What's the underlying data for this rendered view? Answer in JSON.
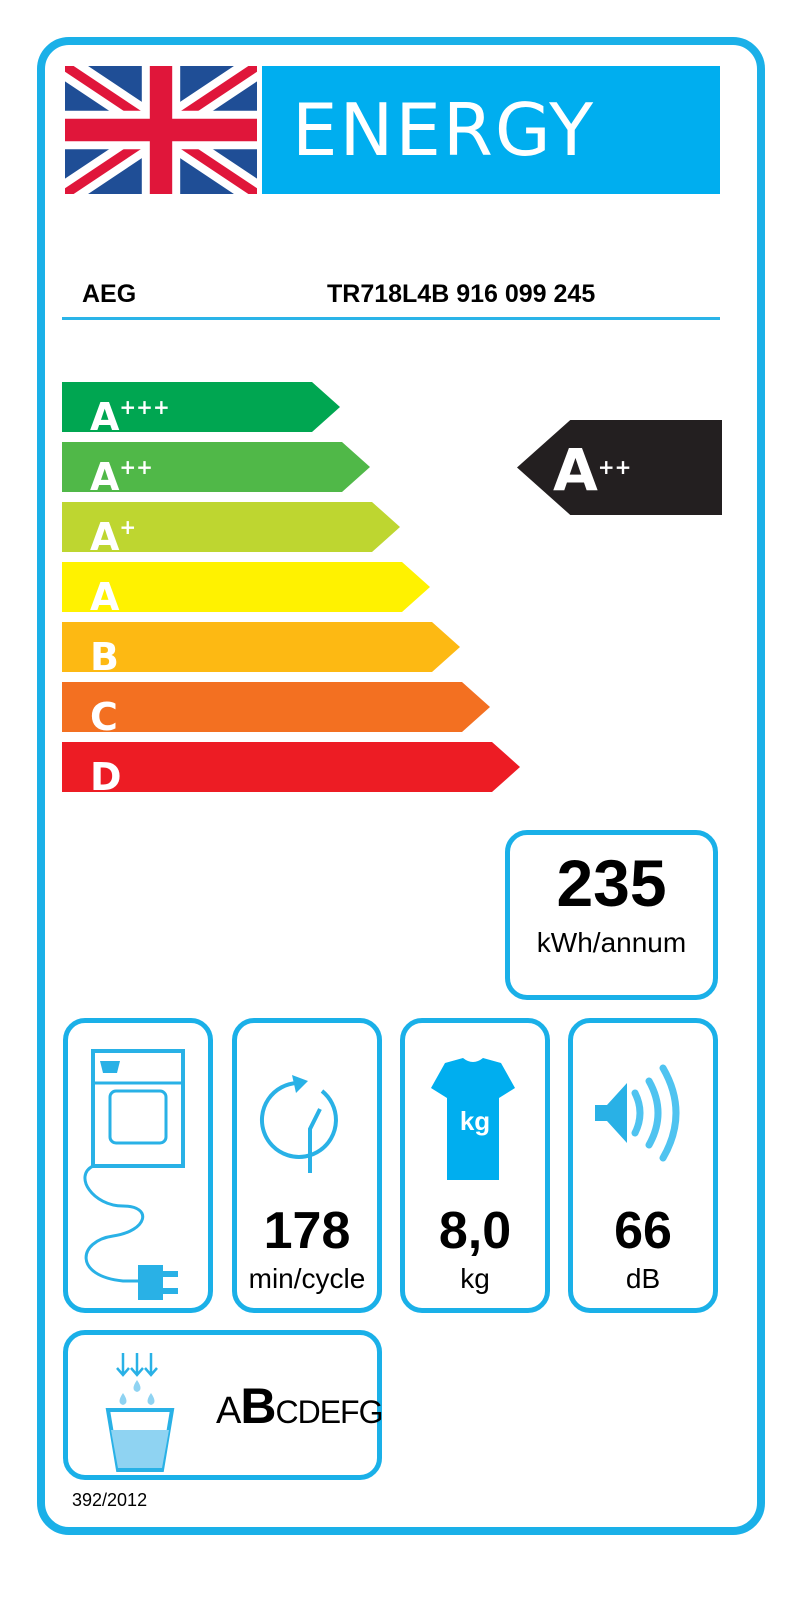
{
  "header": {
    "title": "ENERGY",
    "flag": "uk-flag"
  },
  "supplier": "AEG",
  "model": "TR718L4B  916 099 245",
  "scale": [
    {
      "main": "A",
      "sup": "+++",
      "color": "#00a651"
    },
    {
      "main": "A",
      "sup": "++",
      "color": "#50b848"
    },
    {
      "main": "A",
      "sup": "+",
      "color": "#bed630"
    },
    {
      "main": "A",
      "sup": "",
      "color": "#fff200"
    },
    {
      "main": "B",
      "sup": "",
      "color": "#fdb913"
    },
    {
      "main": "C",
      "sup": "",
      "color": "#f37021"
    },
    {
      "main": "D",
      "sup": "",
      "color": "#ed1c24"
    }
  ],
  "rating": {
    "main": "A",
    "sup": "++"
  },
  "consumption": {
    "value": "235",
    "unit": "kWh/annum"
  },
  "cycle": {
    "value": "178",
    "unit": "min/cycle"
  },
  "capacity": {
    "value": "8,0",
    "unit": "kg",
    "icon_text": "kg"
  },
  "noise": {
    "value": "66",
    "unit": "dB"
  },
  "condensation": {
    "classes": [
      "A",
      "B",
      "C",
      "D",
      "E",
      "F",
      "G"
    ],
    "selected": "B"
  },
  "regulation": "392/2012",
  "colors": {
    "accent": "#00aeef",
    "border": "#1ab0e8"
  }
}
